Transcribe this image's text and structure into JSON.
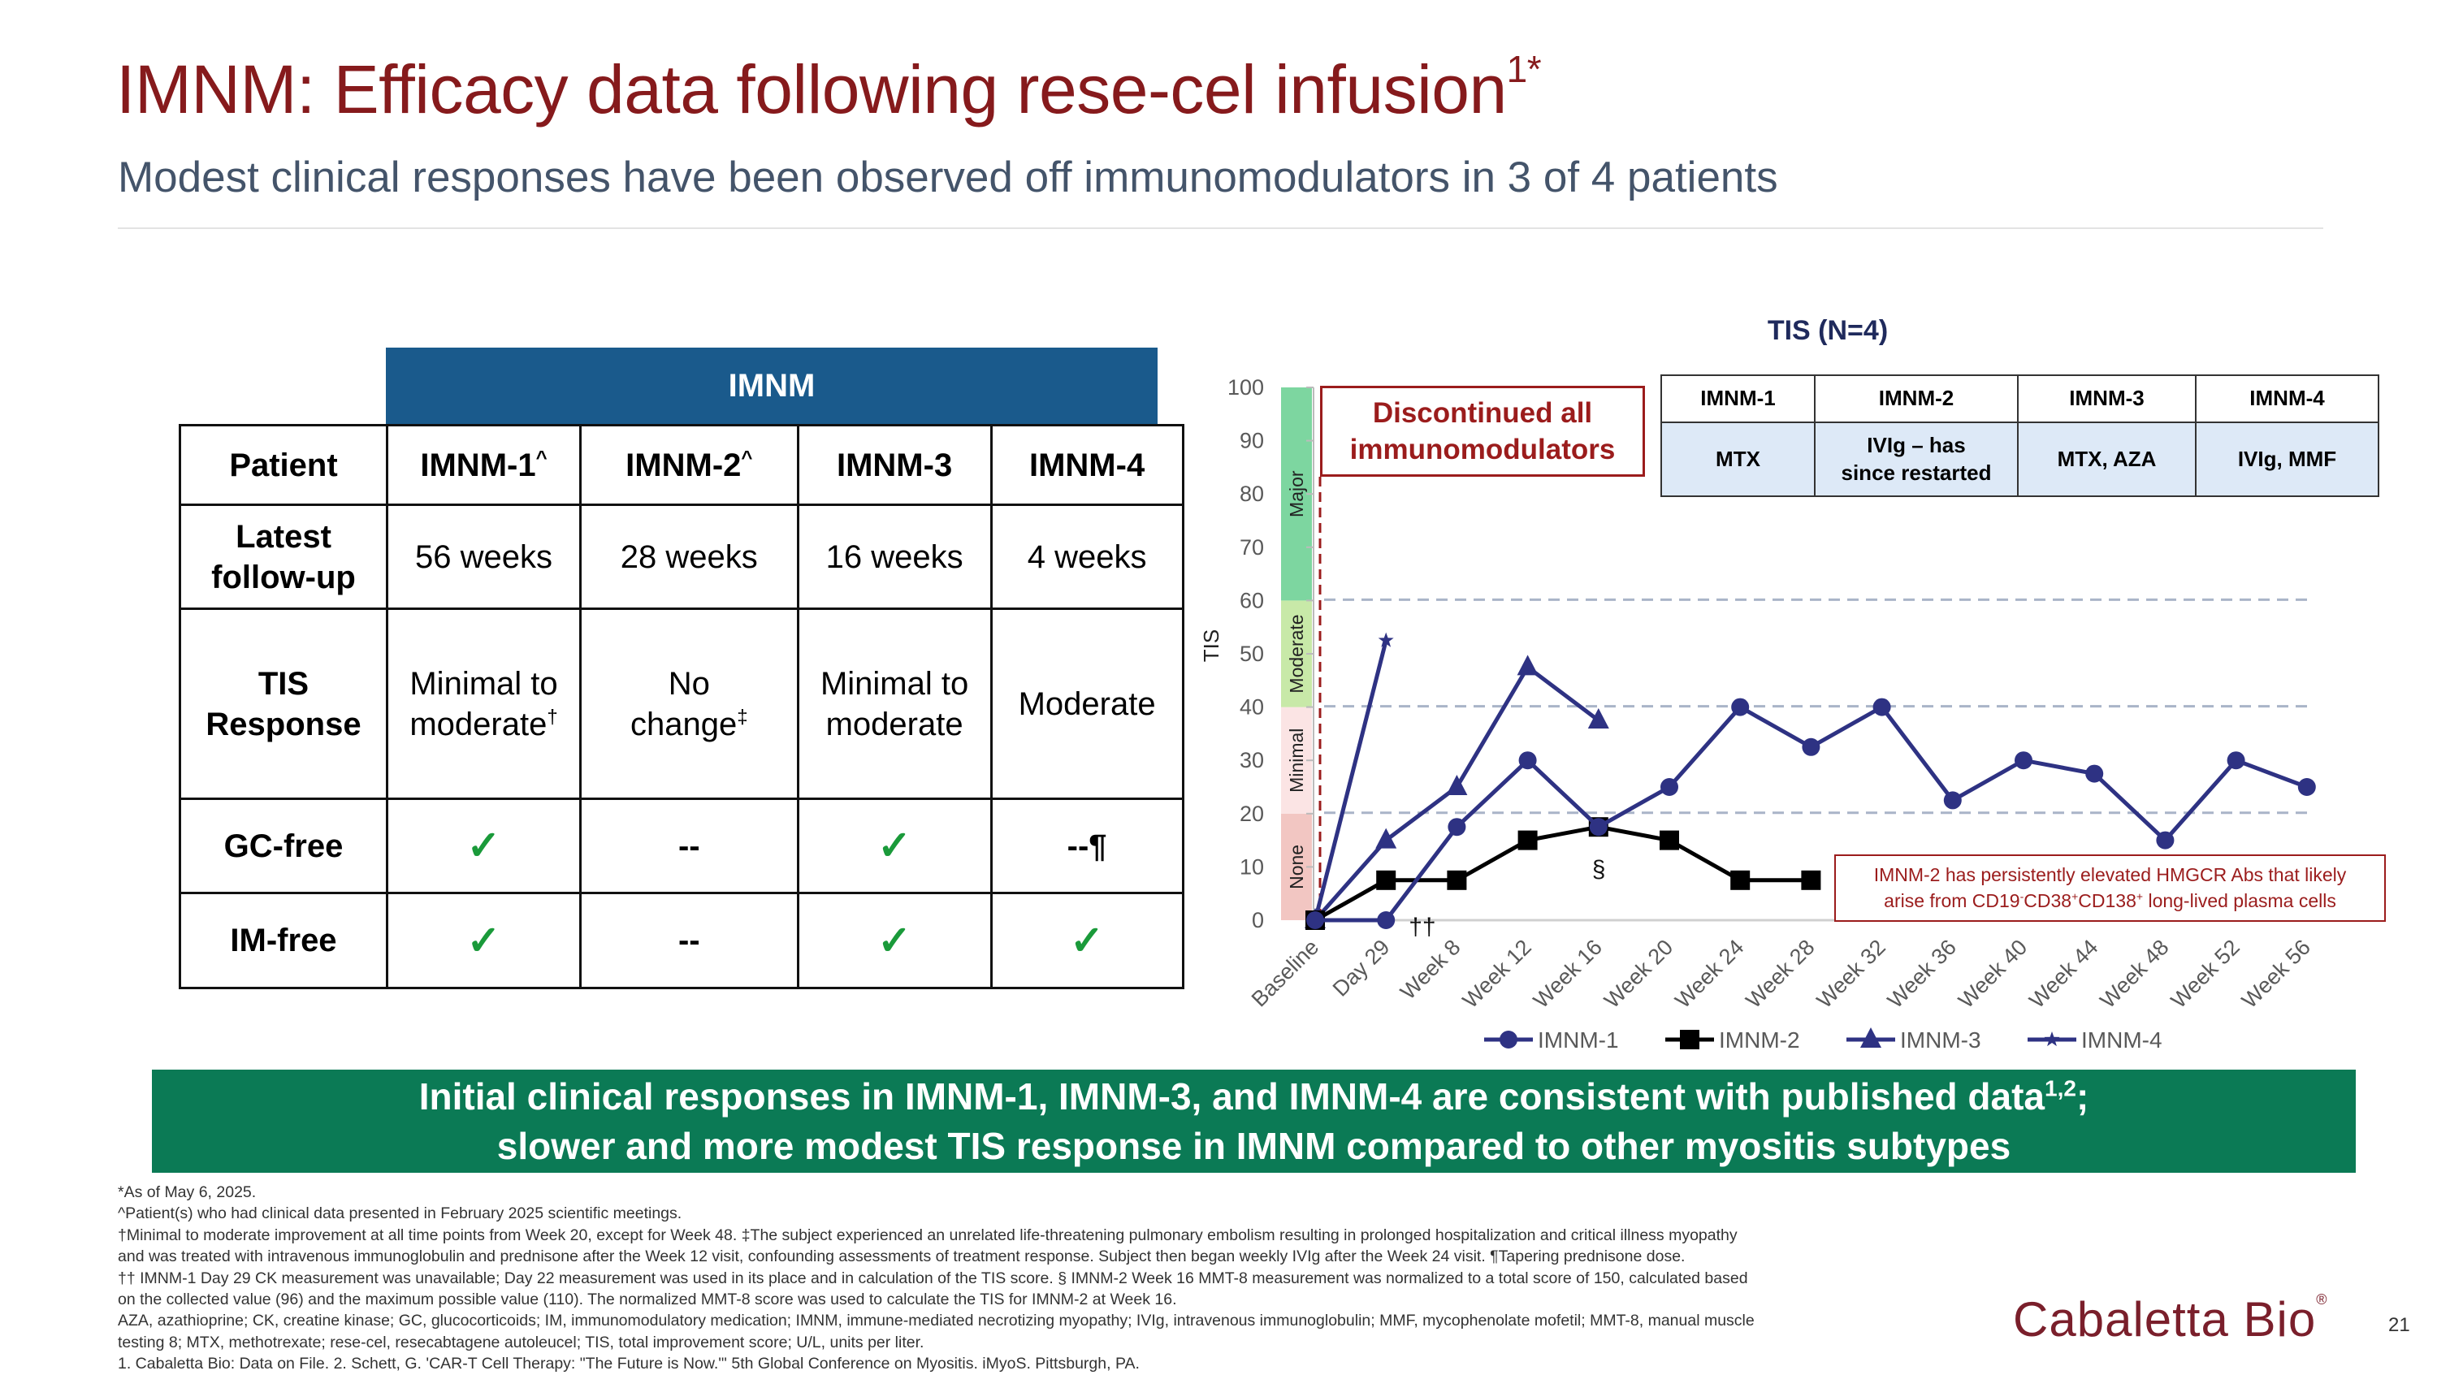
{
  "header": {
    "title": "IMNM: Efficacy data following rese-cel infusion",
    "title_sup": "1*",
    "subtitle": "Modest clinical responses have been observed off immunomodulators in 3 of 4 patients"
  },
  "patient_table": {
    "group_header": "IMNM",
    "row_headers": [
      "Patient",
      "Latest follow-up",
      "TIS Response",
      "GC-free",
      "IM-free"
    ],
    "patients": [
      {
        "name": "IMNM-1",
        "sup": "^",
        "followup": "56 weeks",
        "tis": "Minimal to moderate",
        "tis_sup": "†",
        "gc_free": "check",
        "im_free": "check"
      },
      {
        "name": "IMNM-2",
        "sup": "^",
        "followup": "28 weeks",
        "tis": "No change",
        "tis_sup": "‡",
        "gc_free": "--",
        "im_free": "--"
      },
      {
        "name": "IMNM-3",
        "sup": "",
        "followup": "16 weeks",
        "tis": "Minimal to moderate",
        "tis_sup": "",
        "gc_free": "check",
        "im_free": "check"
      },
      {
        "name": "IMNM-4",
        "sup": "",
        "followup": "4 weeks",
        "tis": "Moderate",
        "tis_sup": "",
        "gc_free": "--¶",
        "im_free": "check"
      }
    ],
    "check_symbol": "✓",
    "check_color": "#1a9a3a",
    "header_color": "#1a5a8c"
  },
  "chart_data": {
    "type": "line",
    "title": "TIS (N=4)",
    "ylabel": "TIS",
    "xlabel": "",
    "ylim": [
      0,
      100
    ],
    "yticks": [
      0,
      10,
      20,
      30,
      40,
      50,
      60,
      70,
      80,
      90,
      100
    ],
    "categories": [
      "Baseline",
      "Day 29",
      "Week 8",
      "Week 12",
      "Week 16",
      "Week 20",
      "Week 24",
      "Week 28",
      "Week 32",
      "Week 36",
      "Week 40",
      "Week 44",
      "Week 48",
      "Week 52",
      "Week 56"
    ],
    "series": [
      {
        "name": "IMNM-1",
        "marker": "circle",
        "color": "#2e3283",
        "values": [
          0,
          0,
          17.5,
          30,
          17.5,
          25,
          40,
          32.5,
          40,
          22.5,
          30,
          27.5,
          15,
          30,
          25
        ]
      },
      {
        "name": "IMNM-2",
        "marker": "square",
        "color": "#000000",
        "values": [
          0,
          7.5,
          7.5,
          15,
          17.5,
          15,
          7.5,
          7.5,
          null,
          null,
          null,
          null,
          null,
          null,
          null
        ]
      },
      {
        "name": "IMNM-3",
        "marker": "triangle",
        "color": "#2e3283",
        "values": [
          0,
          15,
          25,
          47.5,
          37.5,
          null,
          null,
          null,
          null,
          null,
          null,
          null,
          null,
          null,
          null
        ]
      },
      {
        "name": "IMNM-4",
        "marker": "star",
        "color": "#2e3283",
        "values": [
          0,
          52.5,
          null,
          null,
          null,
          null,
          null,
          null,
          null,
          null,
          null,
          null,
          null,
          null,
          null
        ]
      }
    ],
    "response_bands": [
      {
        "label": "None",
        "from": 0,
        "to": 20,
        "color": "#f2c6c2"
      },
      {
        "label": "Minimal",
        "from": 20,
        "to": 40,
        "color": "#fbe4e4"
      },
      {
        "label": "Moderate",
        "from": 40,
        "to": 60,
        "color": "#c8e9a8"
      },
      {
        "label": "Major",
        "from": 60,
        "to": 100,
        "color": "#7dd6a0"
      }
    ],
    "threshold_lines": [
      20,
      40,
      60
    ],
    "grid": false,
    "legend_position": "bottom",
    "annotations": [
      {
        "text": "††",
        "category": "Day 29",
        "series": "IMNM-1"
      },
      {
        "text": "§",
        "category": "Week 16",
        "series": "IMNM-2"
      }
    ],
    "discontinued_label": "Discontinued all immunomodulators",
    "note": {
      "line1": "IMNM-2 has persistently elevated HMGCR Abs that likely",
      "line2_parts": [
        "arise from CD19",
        "-",
        "CD38",
        "+",
        "CD138",
        "+",
        " long-lived plasma cells"
      ]
    }
  },
  "immunomodulator_table": {
    "headers": [
      "IMNM-1",
      "IMNM-2",
      "IMNM-3",
      "IMNM-4"
    ],
    "values": [
      "MTX",
      "IVIg – has since restarted",
      "MTX, AZA",
      "IVIg, MMF"
    ]
  },
  "banner": {
    "line1": "Initial clinical responses in IMNM-1, IMNM-3, and IMNM-4 are consistent with published data",
    "line1_sup": "1,2",
    "line1_end": ";",
    "line2": "slower and more modest TIS response in IMNM compared to other myositis subtypes",
    "color": "#0b7a55"
  },
  "footnotes": [
    "*As of May 6, 2025.",
    "^Patient(s) who had clinical data presented in February 2025 scientific meetings.",
    "†Minimal to moderate improvement at all time points from Week 20, except for Week 48. ‡The subject experienced an unrelated life-threatening pulmonary embolism resulting in prolonged hospitalization and critical illness myopathy",
    "and was treated with intravenous immunoglobulin and prednisone after the Week 12 visit, confounding assessments of treatment response. Subject then began weekly IVIg after the Week 24 visit. ¶Tapering prednisone dose.",
    "†† IMNM-1 Day 29 CK measurement was unavailable; Day 22 measurement was used in its place and in calculation of the TIS score. § IMNM-2 Week 16 MMT-8 measurement was normalized to a total score of 150, calculated based",
    "on the collected value (96) and the maximum possible value (110). The normalized MMT-8 score was used to calculate the TIS for IMNM-2 at Week 16.",
    "AZA, azathioprine; CK, creatine kinase; GC, glucocorticoids; IM, immunomodulatory medication; IMNM, immune-mediated necrotizing myopathy; IVIg, intravenous immunoglobulin; MMF, mycophenolate mofetil; MMT-8, manual muscle",
    "testing 8; MTX, methotrexate; rese-cel, resecabtagene autoleucel; TIS, total improvement score; U/L, units per liter.",
    "1. Cabaletta Bio: Data on File. 2. Schett, G. 'CAR-T Cell Therapy: \"The Future is Now.\"' 5th Global Conference on Myositis. iMyoS. Pittsburgh, PA."
  ],
  "footer": {
    "logo": "Cabaletta Bio",
    "logo_mark": "®",
    "page_number": "21"
  }
}
